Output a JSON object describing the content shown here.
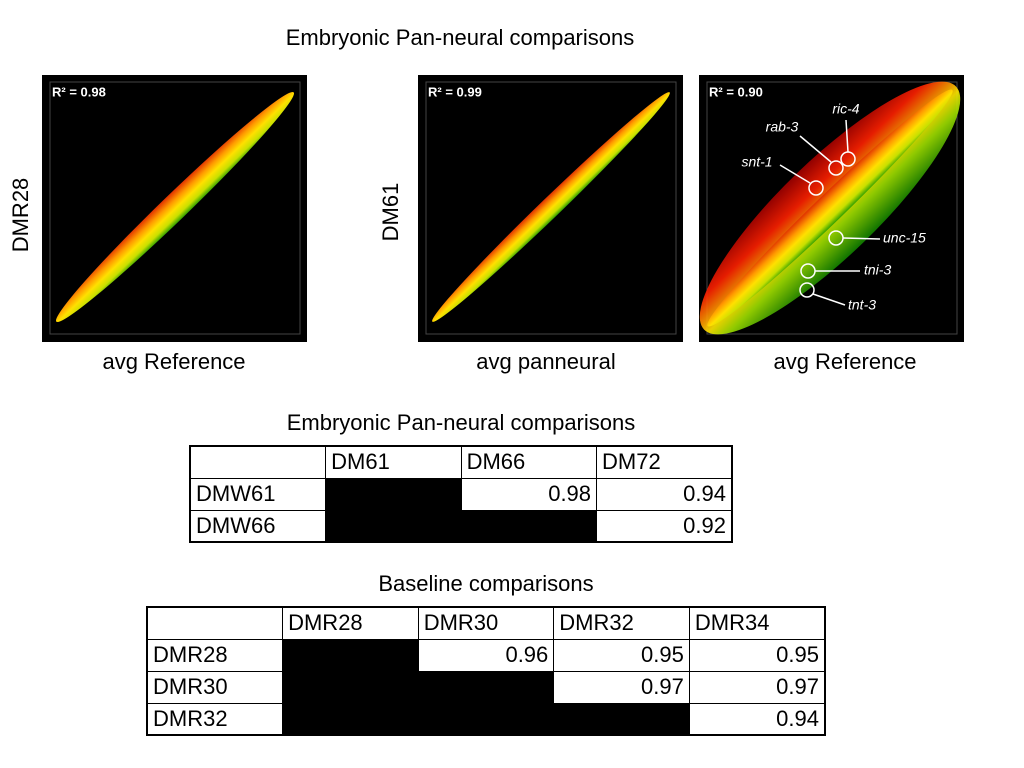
{
  "title": "Embryonic Pan-neural comparisons",
  "plots": [
    {
      "y_label": "DMR28",
      "x_label": "avg Reference",
      "r2": "R² = 0.98"
    },
    {
      "y_label": "DM61",
      "x_label": "avg panneural",
      "r2": "R² = 0.99"
    },
    {
      "x_label": "avg Reference",
      "r2": "R² = 0.90",
      "genes": [
        "ric-4",
        "rab-3",
        "snt-1",
        "unc-15",
        "tni-3",
        "tnt-3"
      ]
    }
  ],
  "tables": [
    {
      "title": "Embryonic Pan-neural comparisons",
      "columns": [
        "DM61",
        "DM66",
        "DM72"
      ],
      "rows": [
        {
          "label": "DMW61",
          "values": [
            null,
            0.98,
            0.94
          ]
        },
        {
          "label": "DMW66",
          "values": [
            null,
            null,
            0.92
          ]
        }
      ]
    },
    {
      "title": "Baseline comparisons",
      "columns": [
        "DMR28",
        "DMR30",
        "DMR32",
        "DMR34"
      ],
      "rows": [
        {
          "label": "DMR28",
          "values": [
            null,
            0.96,
            0.95,
            0.95
          ]
        },
        {
          "label": "DMR30",
          "values": [
            null,
            null,
            0.97,
            0.97
          ]
        },
        {
          "label": "DMR32",
          "values": [
            null,
            null,
            null,
            0.94
          ]
        }
      ]
    }
  ]
}
